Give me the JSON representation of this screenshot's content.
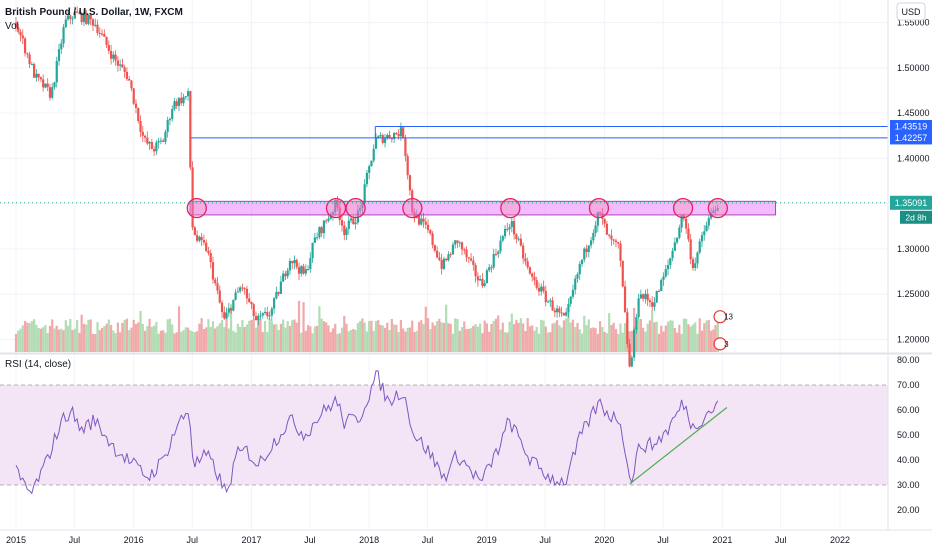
{
  "header": {
    "symbol_title": "British Pound / U.S. Dollar, 1W, FXCM",
    "volume_label": "Vol",
    "currency_button": "USD"
  },
  "rsi_panel": {
    "title": "RSI (14, close)"
  },
  "colors": {
    "up": "#26a69a",
    "down": "#ef5350",
    "resistance_zone": "#e040fb",
    "rsi_line": "#7e57c2",
    "rsi_band": "#f3e5f5",
    "trendline": "#4caf50",
    "level_line": "#2962ff",
    "last_price_tag": "#26a69a"
  },
  "chart_data": [
    {
      "type": "candlestick",
      "title": "British Pound / U.S. Dollar, 1W, FXCM",
      "x_ticks": [
        "2015",
        "Jul",
        "2016",
        "Jul",
        "2017",
        "Jul",
        "2018",
        "Jul",
        "2019",
        "Jul",
        "2020",
        "Jul",
        "2021",
        "Jul",
        "2022"
      ],
      "y_ticks": [
        "1.55000",
        "1.50000",
        "1.45000",
        "1.40000",
        "1.35000",
        "1.30000",
        "1.25000",
        "1.20000"
      ],
      "ylim": [
        1.186,
        1.575
      ],
      "path_points": [
        [
          "2015-01-01",
          1.55
        ],
        [
          "2015-03-01",
          1.49
        ],
        [
          "2015-04-20",
          1.47
        ],
        [
          "2015-06-01",
          1.55
        ],
        [
          "2015-07-01",
          1.56
        ],
        [
          "2015-09-01",
          1.55
        ],
        [
          "2015-11-01",
          1.51
        ],
        [
          "2015-12-15",
          1.49
        ],
        [
          "2016-02-01",
          1.42
        ],
        [
          "2016-03-01",
          1.41
        ],
        [
          "2016-04-01",
          1.42
        ],
        [
          "2016-05-01",
          1.46
        ],
        [
          "2016-06-20",
          1.47
        ],
        [
          "2016-06-27",
          1.33
        ],
        [
          "2016-07-15",
          1.31
        ],
        [
          "2016-08-15",
          1.3
        ],
        [
          "2016-10-07",
          1.22
        ],
        [
          "2016-11-01",
          1.24
        ],
        [
          "2016-12-01",
          1.26
        ],
        [
          "2017-01-15",
          1.22
        ],
        [
          "2017-03-01",
          1.23
        ],
        [
          "2017-05-01",
          1.29
        ],
        [
          "2017-06-15",
          1.27
        ],
        [
          "2017-07-15",
          1.31
        ],
        [
          "2017-09-20",
          1.35
        ],
        [
          "2017-10-15",
          1.32
        ],
        [
          "2017-12-01",
          1.34
        ],
        [
          "2018-01-20",
          1.42
        ],
        [
          "2018-04-15",
          1.43
        ],
        [
          "2018-05-15",
          1.34
        ],
        [
          "2018-07-01",
          1.32
        ],
        [
          "2018-08-15",
          1.28
        ],
        [
          "2018-10-01",
          1.31
        ],
        [
          "2018-12-15",
          1.26
        ],
        [
          "2019-02-15",
          1.31
        ],
        [
          "2019-03-15",
          1.33
        ],
        [
          "2019-05-15",
          1.27
        ],
        [
          "2019-07-15",
          1.24
        ],
        [
          "2019-09-01",
          1.22
        ],
        [
          "2019-10-15",
          1.28
        ],
        [
          "2019-12-15",
          1.34
        ],
        [
          "2020-01-15",
          1.31
        ],
        [
          "2020-02-15",
          1.3
        ],
        [
          "2020-03-20",
          1.16
        ],
        [
          "2020-04-15",
          1.25
        ],
        [
          "2020-06-01",
          1.24
        ],
        [
          "2020-07-15",
          1.28
        ],
        [
          "2020-09-01",
          1.34
        ],
        [
          "2020-10-01",
          1.28
        ],
        [
          "2020-11-15",
          1.33
        ],
        [
          "2020-12-18",
          1.35
        ]
      ],
      "volume_note": "weekly volume bars along the bottom of the price pane",
      "resistance_zone": {
        "from": "2016-06-24",
        "to": "2021-06-15",
        "low": 1.3375,
        "high": 1.3525
      },
      "touch_markers": [
        "2016-07-15",
        "2017-09-20",
        "2017-11-20",
        "2018-05-15",
        "2019-03-15",
        "2019-12-15",
        "2020-09-01",
        "2020-12-18"
      ],
      "horizontal_levels": [
        {
          "value": 1.43519,
          "label": "1.43519",
          "from": "2018-01-20"
        },
        {
          "value": 1.42257,
          "label": "1.42257",
          "from": "2016-06-27"
        }
      ],
      "last_price": {
        "value": 1.35091,
        "label": "1.35091",
        "countdown": "2d 8h"
      },
      "badges": [
        {
          "label": "13"
        },
        {
          "label": "3"
        }
      ]
    },
    {
      "type": "line",
      "title": "RSI (14, close)",
      "y_ticks": [
        "80.00",
        "70.00",
        "60.00",
        "50.00",
        "40.00",
        "30.00",
        "20.00"
      ],
      "ylim": [
        12,
        82
      ],
      "bands": {
        "upper": 70,
        "lower": 30
      },
      "path_points": [
        [
          "2015-01-01",
          35
        ],
        [
          "2015-02-15",
          26
        ],
        [
          "2015-04-01",
          38
        ],
        [
          "2015-05-20",
          55
        ],
        [
          "2015-06-20",
          60
        ],
        [
          "2015-07-20",
          52
        ],
        [
          "2015-09-01",
          56
        ],
        [
          "2015-11-01",
          45
        ],
        [
          "2015-12-15",
          40
        ],
        [
          "2016-02-15",
          33
        ],
        [
          "2016-04-01",
          40
        ],
        [
          "2016-05-15",
          54
        ],
        [
          "2016-06-20",
          60
        ],
        [
          "2016-07-05",
          38
        ],
        [
          "2016-08-15",
          42
        ],
        [
          "2016-09-15",
          35
        ],
        [
          "2016-10-15",
          26
        ],
        [
          "2016-11-15",
          42
        ],
        [
          "2016-12-15",
          44
        ],
        [
          "2017-01-20",
          38
        ],
        [
          "2017-03-15",
          48
        ],
        [
          "2017-05-01",
          56
        ],
        [
          "2017-06-15",
          50
        ],
        [
          "2017-08-01",
          58
        ],
        [
          "2017-09-20",
          64
        ],
        [
          "2017-10-15",
          55
        ],
        [
          "2017-12-01",
          57
        ],
        [
          "2018-01-25",
          74
        ],
        [
          "2018-03-01",
          63
        ],
        [
          "2018-04-15",
          68
        ],
        [
          "2018-05-20",
          50
        ],
        [
          "2018-07-01",
          44
        ],
        [
          "2018-08-20",
          33
        ],
        [
          "2018-10-01",
          42
        ],
        [
          "2018-12-15",
          31
        ],
        [
          "2019-02-15",
          47
        ],
        [
          "2019-03-10",
          56
        ],
        [
          "2019-05-15",
          40
        ],
        [
          "2019-07-15",
          33
        ],
        [
          "2019-09-01",
          31
        ],
        [
          "2019-10-20",
          50
        ],
        [
          "2019-12-15",
          63
        ],
        [
          "2020-01-15",
          58
        ],
        [
          "2020-02-20",
          56
        ],
        [
          "2020-03-20",
          30
        ],
        [
          "2020-04-20",
          46
        ],
        [
          "2020-06-01",
          46
        ],
        [
          "2020-07-15",
          52
        ],
        [
          "2020-09-01",
          63
        ],
        [
          "2020-10-01",
          53
        ],
        [
          "2020-11-15",
          59
        ],
        [
          "2020-12-18",
          62
        ]
      ],
      "trendline": [
        [
          "2020-03-20",
          30.5
        ],
        [
          "2021-01-15",
          61
        ]
      ]
    }
  ]
}
